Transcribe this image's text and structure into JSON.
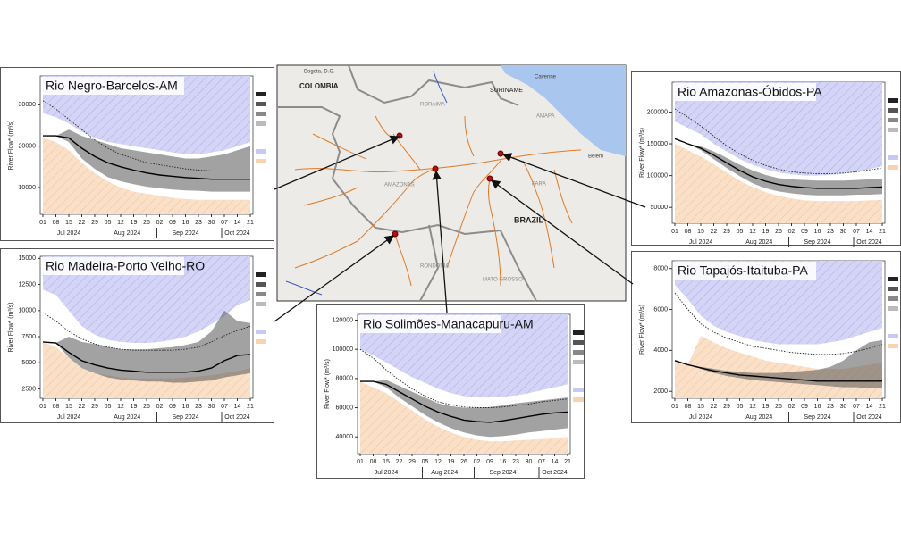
{
  "chart_data": [
    {
      "type": "band-forecast",
      "title": "Rio Negro-Barcelos-AM",
      "ylabel": "River Flow* (m³/s)",
      "categories": [
        "01",
        "08",
        "15",
        "22",
        "29",
        "05",
        "12",
        "19",
        "26",
        "02",
        "09",
        "16",
        "23",
        "30",
        "07",
        "14",
        "21"
      ],
      "month_labels": [
        "Jul 2024",
        "Aug 2024",
        "Sep 2024",
        "Oct 2024"
      ],
      "ylim": [
        3500,
        37000
      ],
      "yticks": [
        10000,
        20000,
        30000
      ],
      "median": [
        22500,
        22500,
        22000,
        19500,
        17500,
        16000,
        15000,
        14200,
        13500,
        13000,
        12700,
        12400,
        12200,
        12000,
        12000,
        12000,
        12000
      ],
      "p10": [
        22500,
        22500,
        21000,
        17000,
        14500,
        12500,
        11500,
        10800,
        10200,
        9800,
        9500,
        9300,
        9200,
        9000,
        9000,
        9000,
        9000
      ],
      "p90": [
        22500,
        22500,
        24000,
        22500,
        21500,
        20500,
        19500,
        19000,
        18500,
        18000,
        17500,
        17000,
        17000,
        17500,
        18000,
        19000,
        20000
      ],
      "above_normal": [
        28000,
        27000,
        25500,
        23500,
        22000,
        21000,
        20500,
        20000,
        19500,
        19000,
        18500,
        18000,
        18000,
        18500,
        19000,
        20000,
        21000
      ],
      "below_normal": [
        22000,
        21000,
        19000,
        16000,
        13500,
        11500,
        10000,
        9000,
        8500,
        8000,
        7500,
        7200,
        7000,
        7000,
        7000,
        7000,
        7000
      ],
      "mean": [
        31000,
        29000,
        26500,
        24000,
        21500,
        19500,
        18000,
        17000,
        16000,
        15500,
        15000,
        14500,
        14200,
        14000,
        14000,
        14000,
        14000
      ]
    },
    {
      "type": "band-forecast",
      "title": "Rio Madeira-Porto Velho-RO",
      "ylabel": "River Flow* (m³/s)",
      "categories": [
        "01",
        "08",
        "15",
        "22",
        "29",
        "05",
        "12",
        "19",
        "26",
        "02",
        "09",
        "16",
        "23",
        "30",
        "07",
        "14",
        "21"
      ],
      "month_labels": [
        "Jul 2024",
        "Aug 2024",
        "Sep 2024",
        "Oct 2024"
      ],
      "ylim": [
        1600,
        15200
      ],
      "yticks": [
        2500,
        5000,
        7500,
        10000,
        12500,
        15000
      ],
      "median": [
        7000,
        6900,
        6000,
        5200,
        4800,
        4500,
        4300,
        4200,
        4100,
        4100,
        4100,
        4100,
        4200,
        4500,
        5200,
        5700,
        5800
      ],
      "p10": [
        7000,
        6900,
        5500,
        4500,
        4000,
        3600,
        3400,
        3300,
        3200,
        3200,
        3100,
        3100,
        3200,
        3300,
        3600,
        3800,
        4000
      ],
      "p90": [
        7000,
        6900,
        7500,
        7000,
        6800,
        6500,
        6300,
        6300,
        6300,
        6400,
        6500,
        6700,
        7000,
        8000,
        10000,
        9000,
        8800
      ],
      "above_normal": [
        12000,
        11500,
        10000,
        8500,
        7700,
        7200,
        7000,
        6900,
        6900,
        7000,
        7200,
        7500,
        8000,
        8700,
        9500,
        10500,
        11000
      ],
      "below_normal": [
        7000,
        6500,
        5500,
        4500,
        4000,
        3800,
        3600,
        3500,
        3500,
        3500,
        3500,
        3600,
        3700,
        3800,
        4000,
        4200,
        4500
      ],
      "mean": [
        9800,
        9000,
        8000,
        7300,
        6800,
        6500,
        6300,
        6200,
        6200,
        6200,
        6200,
        6300,
        6500,
        7000,
        7600,
        8100,
        8500
      ]
    },
    {
      "type": "band-forecast",
      "title": "Rio Solimões-Manacapuru-AM",
      "ylabel": "River Flow* (m³/s)",
      "categories": [
        "01",
        "08",
        "15",
        "22",
        "29",
        "05",
        "12",
        "19",
        "26",
        "02",
        "09",
        "16",
        "23",
        "30",
        "07",
        "14",
        "21"
      ],
      "month_labels": [
        "Jul 2024",
        "Aug 2024",
        "Sep 2024",
        "Oct 2024"
      ],
      "ylim": [
        28500,
        124000
      ],
      "yticks": [
        40000,
        60000,
        80000,
        100000,
        120000
      ],
      "median": [
        78000,
        78000,
        76000,
        71000,
        66000,
        61000,
        57000,
        54000,
        51500,
        50500,
        50000,
        51000,
        52500,
        54000,
        55500,
        56500,
        57000
      ],
      "p10": [
        78000,
        78000,
        74000,
        67000,
        61000,
        55000,
        50000,
        46000,
        43000,
        41000,
        40000,
        40500,
        41500,
        43000,
        44000,
        45000,
        46000
      ],
      "p90": [
        78000,
        78000,
        79000,
        75000,
        71000,
        67000,
        63000,
        61000,
        60000,
        60000,
        60500,
        61500,
        63000,
        64000,
        65000,
        66000,
        67000
      ],
      "above_normal": [
        100000,
        96000,
        91000,
        86000,
        81000,
        77000,
        73000,
        70000,
        68000,
        67000,
        67000,
        67500,
        68500,
        70000,
        72000,
        74000,
        76000
      ],
      "below_normal": [
        78000,
        74000,
        70000,
        64000,
        58000,
        52000,
        47000,
        43000,
        40000,
        38000,
        37000,
        37000,
        37500,
        38000,
        38500,
        39000,
        40000
      ],
      "mean": [
        100000,
        94000,
        86000,
        79000,
        73000,
        68000,
        64000,
        62000,
        60500,
        60000,
        60000,
        60500,
        61500,
        62500,
        64000,
        65000,
        66000
      ]
    },
    {
      "type": "band-forecast",
      "title": "Rio Amazonas-Óbidos-PA",
      "ylabel": "River Flow* (m³/s)",
      "categories": [
        "01",
        "08",
        "15",
        "22",
        "29",
        "05",
        "12",
        "19",
        "26",
        "02",
        "09",
        "16",
        "23",
        "30",
        "07",
        "14",
        "21"
      ],
      "month_labels": [
        "Jul 2024",
        "Aug 2024",
        "Sep 2024",
        "Oct 2024"
      ],
      "ylim": [
        25000,
        247000
      ],
      "yticks": [
        50000,
        100000,
        150000,
        200000
      ],
      "median": [
        158000,
        150000,
        143000,
        132000,
        120000,
        108000,
        98000,
        91000,
        86000,
        83000,
        81000,
        80000,
        80000,
        80000,
        80000,
        81000,
        82000
      ],
      "p10": [
        158000,
        150000,
        140000,
        126000,
        112000,
        99000,
        88000,
        80000,
        75000,
        72000,
        70000,
        69000,
        69000,
        69000,
        70000,
        70000,
        71000
      ],
      "p90": [
        158000,
        150000,
        146000,
        138000,
        128000,
        117000,
        108000,
        101000,
        96000,
        94000,
        93000,
        92000,
        92000,
        92000,
        93000,
        94000,
        95000
      ],
      "above_normal": [
        185000,
        175000,
        165000,
        150000,
        138000,
        126000,
        117000,
        110000,
        105000,
        102000,
        100000,
        100000,
        101000,
        103000,
        106000,
        110000,
        115000
      ],
      "below_normal": [
        150000,
        140000,
        130000,
        118000,
        105000,
        92000,
        82000,
        74000,
        68000,
        64000,
        61000,
        60000,
        60000,
        60000,
        60000,
        61000,
        62000
      ],
      "mean": [
        205000,
        192000,
        178000,
        162000,
        147000,
        134000,
        124000,
        116000,
        110000,
        106000,
        104000,
        103000,
        103000,
        104000,
        106000,
        109000,
        112000
      ]
    },
    {
      "type": "band-forecast",
      "title": "Rio Tapajós-Itaituba-PA",
      "ylabel": "River Flow* (m³/s)",
      "categories": [
        "01",
        "08",
        "15",
        "22",
        "29",
        "05",
        "12",
        "19",
        "26",
        "02",
        "09",
        "16",
        "23",
        "30",
        "07",
        "14",
        "21"
      ],
      "month_labels": [
        "Jul 2024",
        "Aug 2024",
        "Sep 2024",
        "Oct 2024"
      ],
      "ylim": [
        1660,
        8380
      ],
      "yticks": [
        2000,
        4000,
        6000,
        8000
      ],
      "median": [
        3500,
        3300,
        3150,
        3000,
        2900,
        2800,
        2750,
        2700,
        2650,
        2600,
        2550,
        2500,
        2500,
        2500,
        2500,
        2500,
        2500
      ],
      "p10": [
        3500,
        3300,
        3100,
        2900,
        2750,
        2650,
        2550,
        2500,
        2450,
        2400,
        2350,
        2300,
        2250,
        2200,
        2200,
        2150,
        2150
      ],
      "p90": [
        3500,
        3300,
        3200,
        3100,
        3000,
        2950,
        2900,
        2900,
        2900,
        2950,
        3000,
        3050,
        3200,
        3500,
        4000,
        4400,
        4500
      ],
      "above_normal": [
        7200,
        6500,
        5700,
        5200,
        4900,
        4700,
        4500,
        4400,
        4300,
        4300,
        4300,
        4300,
        4400,
        4500,
        4700,
        4900,
        5100
      ],
      "below_normal": [
        3500,
        3300,
        4700,
        4400,
        4100,
        3900,
        3700,
        3500,
        3400,
        3300,
        3200,
        3100,
        3100,
        3100,
        3200,
        3300,
        3400
      ],
      "mean": [
        6800,
        6000,
        5300,
        4900,
        4600,
        4400,
        4200,
        4100,
        4000,
        3900,
        3850,
        3800,
        3800,
        3850,
        3950,
        4100,
        4300
      ]
    }
  ],
  "map": {
    "labels": [
      "Bogota, D.C.",
      "COLOMBIA",
      "SURINAME",
      "Cayenne",
      "AMAPA",
      "RORAIMA",
      "Belem",
      "PARA",
      "AMAZONAS",
      "BRAZIL",
      "RONDONIA",
      "MATO GROSSO"
    ]
  }
}
